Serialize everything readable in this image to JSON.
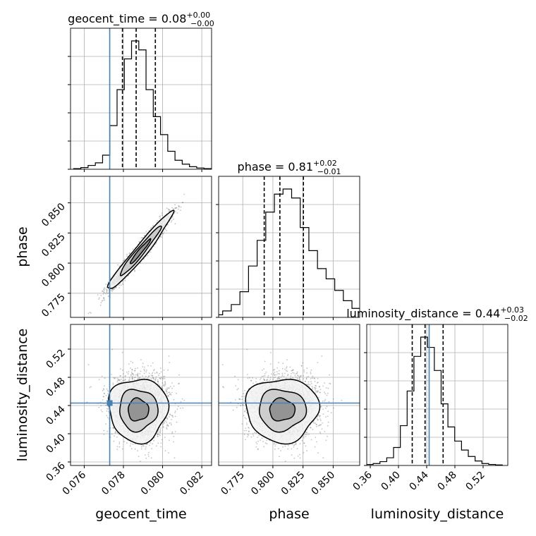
{
  "chart_data": {
    "type": "corner",
    "params": [
      "geocent_time",
      "phase",
      "luminosity_distance"
    ],
    "titles": {
      "geocent_time": {
        "label": "geocent_time",
        "median": "0.08",
        "plus": "+0.00",
        "minus": "−0.00"
      },
      "phase": {
        "label": "phase",
        "median": "0.81",
        "plus": "+0.02",
        "minus": "−0.01"
      },
      "luminosity_distance": {
        "label": "luminosity_distance",
        "median": "0.44",
        "plus": "+0.03",
        "minus": "−0.02"
      }
    },
    "axes": {
      "geocent_time": {
        "range": [
          0.0753,
          0.0825
        ],
        "ticks": [
          0.076,
          0.078,
          0.08,
          0.082
        ],
        "tick_labels": [
          "0.076",
          "0.078",
          "0.080",
          "0.082"
        ],
        "xlabel": "geocent_time"
      },
      "phase": {
        "range": [
          0.755,
          0.872
        ],
        "ticks": [
          0.775,
          0.8,
          0.825,
          0.85
        ],
        "tick_labels": [
          "0.775",
          "0.800",
          "0.825",
          "0.850"
        ],
        "xlabel": "phase",
        "ylabel": "phase"
      },
      "luminosity_distance": {
        "range": [
          0.355,
          0.555
        ],
        "ticks": [
          0.36,
          0.4,
          0.44,
          0.48,
          0.52
        ],
        "tick_labels": [
          "0.36",
          "0.40",
          "0.44",
          "0.48",
          "0.52"
        ],
        "xlabel": "luminosity_distance",
        "ylabel": "luminosity_distance"
      }
    },
    "injection": {
      "geocent_time": 0.0773,
      "luminosity_distance": 0.4435
    },
    "quantiles": {
      "geocent_time": [
        0.07795,
        0.07865,
        0.07963
      ],
      "phase": [
        0.7928,
        0.8058,
        0.8253
      ],
      "luminosity_distance": [
        0.4195,
        0.4377,
        0.4633
      ]
    },
    "histograms": {
      "geocent_time": [
        0.005,
        0.013,
        0.03,
        0.05,
        0.11,
        0.34,
        0.62,
        0.86,
        1.0,
        0.93,
        0.62,
        0.41,
        0.27,
        0.14,
        0.07,
        0.04,
        0.02,
        0.01,
        0.005,
        0.002
      ],
      "phase": [
        0.006,
        0.02,
        0.05,
        0.1,
        0.2,
        0.4,
        0.6,
        0.82,
        0.96,
        1.0,
        0.93,
        0.7,
        0.52,
        0.38,
        0.3,
        0.21,
        0.13,
        0.07,
        0.03,
        0.01
      ],
      "luminosity_distance": [
        0.008,
        0.015,
        0.03,
        0.06,
        0.14,
        0.31,
        0.58,
        0.85,
        1.0,
        0.92,
        0.74,
        0.48,
        0.3,
        0.19,
        0.12,
        0.07,
        0.035,
        0.015,
        0.008,
        0.004
      ]
    },
    "scatter_summary": {
      "phase_vs_geocent_time": {
        "center": [
          0.0788,
          0.812
        ],
        "note": "strong positive correlation"
      },
      "luminosity_distance_vs_geocent_time": {
        "center": [
          0.0787,
          0.431
        ]
      },
      "luminosity_distance_vs_phase": {
        "center": [
          0.806,
          0.431
        ]
      }
    },
    "grid": true,
    "truth_color": "#4682b4",
    "line_color": "#000000"
  }
}
